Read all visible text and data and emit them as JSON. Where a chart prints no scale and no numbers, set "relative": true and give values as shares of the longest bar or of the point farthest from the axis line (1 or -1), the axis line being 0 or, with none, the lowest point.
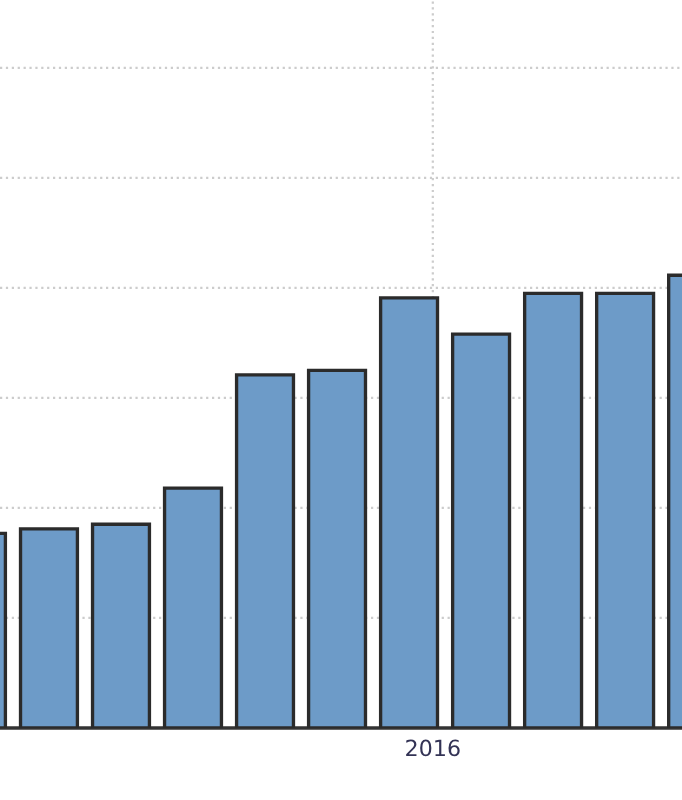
{
  "chart_data": {
    "type": "bar",
    "relative": true,
    "categories": [
      null,
      null,
      null,
      null,
      null,
      null,
      "2016",
      null,
      null,
      null,
      null
    ],
    "values": [
      0.43,
      0.44,
      0.45,
      0.53,
      0.78,
      0.79,
      0.95,
      0.87,
      0.96,
      0.96,
      1.0
    ],
    "color": "#6d9bc8",
    "grid": true
  }
}
